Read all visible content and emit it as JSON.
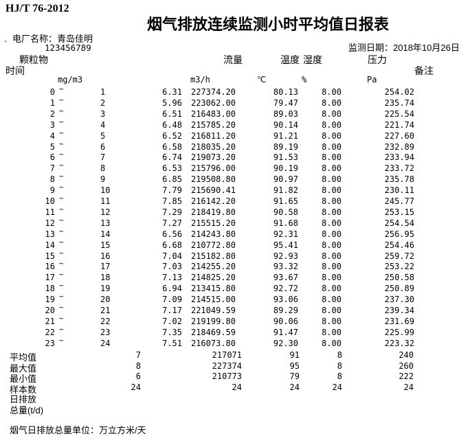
{
  "page": {
    "standard_code": "HJ/T 76-2012",
    "title": "烟气排放连续监测小时平均值日报表",
    "plant_label": "电厂名称：",
    "plant_name": "青岛佳明",
    "plant_mark": "`",
    "plant_code": "123456789",
    "date_label": "监测日期：",
    "date_value": "2018年10月26日",
    "footer_note": "烟气日排放总量单位：万立方米/天"
  },
  "columns": {
    "time": "时间",
    "pm": "颗粒物",
    "flow": "流量",
    "temp": "温度",
    "humidity": "湿度",
    "pressure": "压力",
    "remark": "备注"
  },
  "units": {
    "pm": "mg/m3",
    "flow": "m3/h",
    "temp": "℃",
    "humidity": "%",
    "pressure": "Pa"
  },
  "table": {
    "tilde": "~",
    "rows": [
      {
        "from": "0",
        "to": "1",
        "pm": "6.31",
        "flow": "227374.20",
        "temp": "80.13",
        "humidity": "8.00",
        "pressure": "254.02"
      },
      {
        "from": "1",
        "to": "2",
        "pm": "5.96",
        "flow": "223062.00",
        "temp": "79.47",
        "humidity": "8.00",
        "pressure": "235.74"
      },
      {
        "from": "2",
        "to": "3",
        "pm": "6.51",
        "flow": "216483.00",
        "temp": "89.03",
        "humidity": "8.00",
        "pressure": "225.54"
      },
      {
        "from": "3",
        "to": "4",
        "pm": "6.48",
        "flow": "215785.20",
        "temp": "90.14",
        "humidity": "8.00",
        "pressure": "221.74"
      },
      {
        "from": "4",
        "to": "5",
        "pm": "6.52",
        "flow": "216811.20",
        "temp": "91.21",
        "humidity": "8.00",
        "pressure": "227.60"
      },
      {
        "from": "5",
        "to": "6",
        "pm": "6.58",
        "flow": "218035.20",
        "temp": "89.19",
        "humidity": "8.00",
        "pressure": "232.89"
      },
      {
        "from": "6",
        "to": "7",
        "pm": "6.74",
        "flow": "219073.20",
        "temp": "91.53",
        "humidity": "8.00",
        "pressure": "233.94"
      },
      {
        "from": "7",
        "to": "8",
        "pm": "6.53",
        "flow": "215796.00",
        "temp": "90.19",
        "humidity": "8.00",
        "pressure": "233.72"
      },
      {
        "from": "8",
        "to": "9",
        "pm": "6.85",
        "flow": "219508.80",
        "temp": "90.97",
        "humidity": "8.00",
        "pressure": "235.78"
      },
      {
        "from": "9",
        "to": "10",
        "pm": "7.79",
        "flow": "215690.41",
        "temp": "91.82",
        "humidity": "8.00",
        "pressure": "230.11"
      },
      {
        "from": "10",
        "to": "11",
        "pm": "7.85",
        "flow": "216142.20",
        "temp": "91.65",
        "humidity": "8.00",
        "pressure": "245.77"
      },
      {
        "from": "11",
        "to": "12",
        "pm": "7.29",
        "flow": "218419.80",
        "temp": "90.58",
        "humidity": "8.00",
        "pressure": "253.15"
      },
      {
        "from": "12",
        "to": "13",
        "pm": "7.27",
        "flow": "215515.20",
        "temp": "91.68",
        "humidity": "8.00",
        "pressure": "254.54"
      },
      {
        "from": "13",
        "to": "14",
        "pm": "6.56",
        "flow": "214243.80",
        "temp": "92.31",
        "humidity": "8.00",
        "pressure": "256.95"
      },
      {
        "from": "14",
        "to": "15",
        "pm": "6.68",
        "flow": "210772.80",
        "temp": "95.41",
        "humidity": "8.00",
        "pressure": "254.46"
      },
      {
        "from": "15",
        "to": "16",
        "pm": "7.04",
        "flow": "215182.80",
        "temp": "92.93",
        "humidity": "8.00",
        "pressure": "259.72"
      },
      {
        "from": "16",
        "to": "17",
        "pm": "7.03",
        "flow": "214255.20",
        "temp": "93.32",
        "humidity": "8.00",
        "pressure": "253.22"
      },
      {
        "from": "17",
        "to": "18",
        "pm": "7.13",
        "flow": "214825.20",
        "temp": "93.67",
        "humidity": "8.00",
        "pressure": "250.58"
      },
      {
        "from": "18",
        "to": "19",
        "pm": "6.94",
        "flow": "213415.80",
        "temp": "92.72",
        "humidity": "8.00",
        "pressure": "250.89"
      },
      {
        "from": "19",
        "to": "20",
        "pm": "7.09",
        "flow": "214515.00",
        "temp": "93.06",
        "humidity": "8.00",
        "pressure": "237.30"
      },
      {
        "from": "20",
        "to": "21",
        "pm": "7.17",
        "flow": "221049.59",
        "temp": "89.29",
        "humidity": "8.00",
        "pressure": "239.34"
      },
      {
        "from": "21",
        "to": "22",
        "pm": "7.02",
        "flow": "219199.80",
        "temp": "90.06",
        "humidity": "8.00",
        "pressure": "231.69"
      },
      {
        "from": "22",
        "to": "23",
        "pm": "7.35",
        "flow": "218469.59",
        "temp": "91.47",
        "humidity": "8.00",
        "pressure": "225.99"
      },
      {
        "from": "23",
        "to": "24",
        "pm": "7.51",
        "flow": "216073.80",
        "temp": "92.30",
        "humidity": "8.00",
        "pressure": "223.32"
      }
    ]
  },
  "summary": {
    "rows": [
      {
        "label": "平均值",
        "pm": "7",
        "flow": "217071",
        "temp": "91",
        "humidity": "8",
        "pressure": "240"
      },
      {
        "label": "最大值",
        "pm": "8",
        "flow": "227374",
        "temp": "95",
        "humidity": "8",
        "pressure": "260"
      },
      {
        "label": "最小值",
        "pm": "6",
        "flow": "210773",
        "temp": "79",
        "humidity": "8",
        "pressure": "222"
      },
      {
        "label": "样本数",
        "pm": "24",
        "flow": "24",
        "temp": "24",
        "humidity": "24",
        "pressure": "24"
      }
    ],
    "daily_line1": "日排放",
    "daily_line2": "总量(t/d)"
  }
}
